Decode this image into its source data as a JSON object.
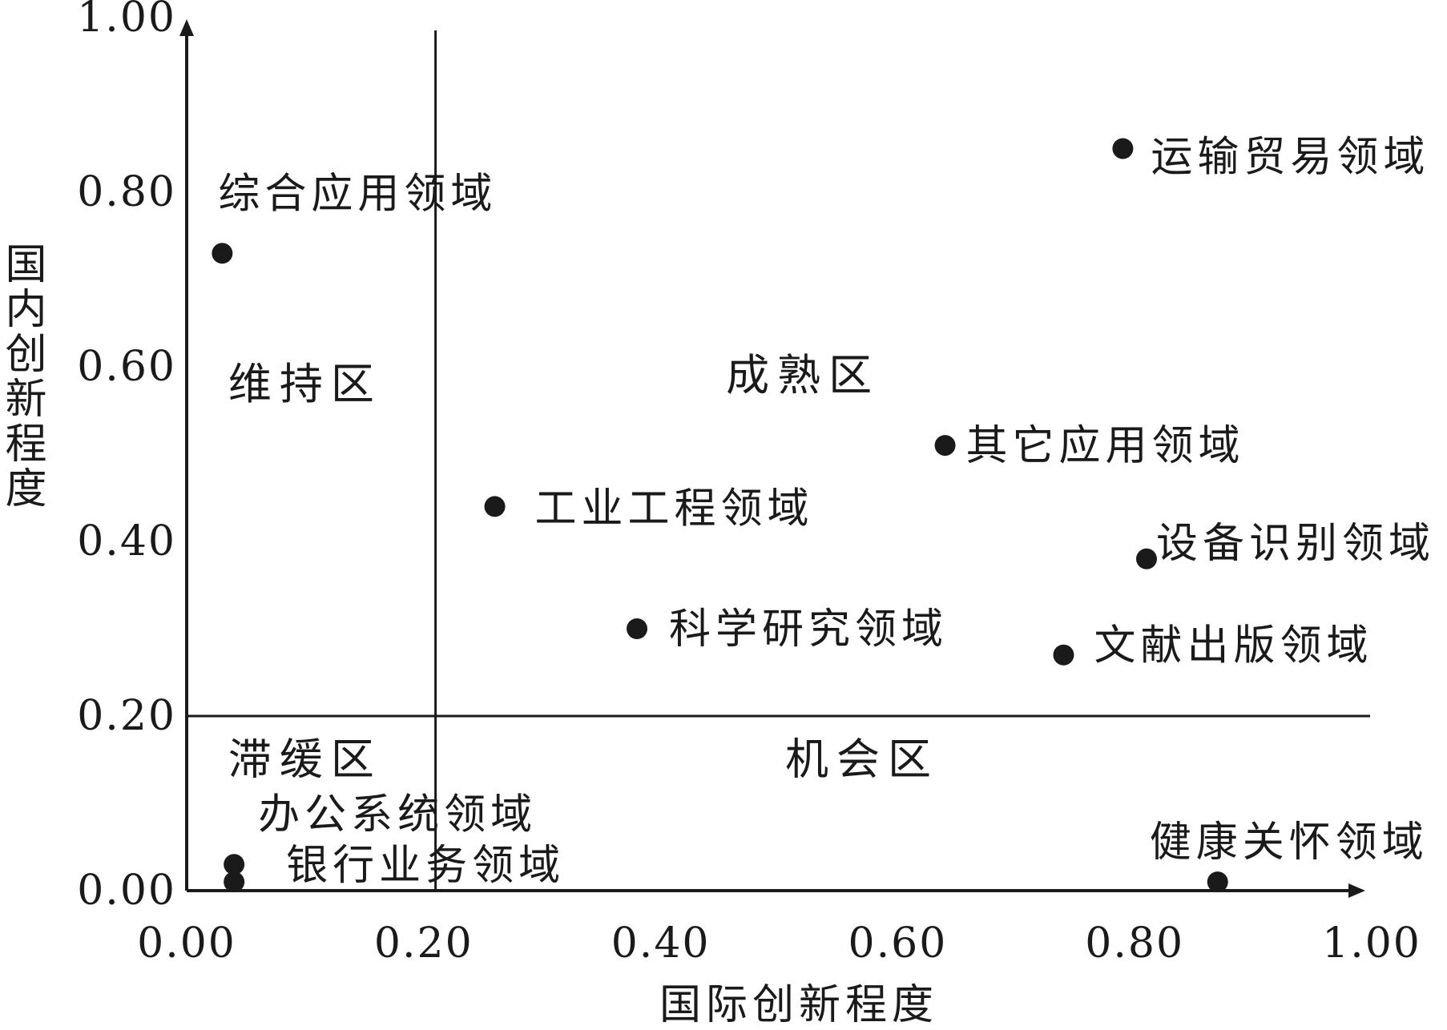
{
  "chart_data": {
    "type": "scatter",
    "xlabel": "国际创新程度",
    "ylabel": "国内创新程度",
    "xlim": [
      0,
      1
    ],
    "ylim": [
      0,
      1
    ],
    "xticks": [
      "0.00",
      "0.20",
      "0.40",
      "0.60",
      "0.80",
      "1.00"
    ],
    "yticks": [
      "0.00",
      "0.20",
      "0.40",
      "0.60",
      "0.80",
      "1.00"
    ],
    "grid": false,
    "divider_x": 0.21,
    "divider_y": 0.2,
    "zones": [
      {
        "label": "维持区",
        "x": 0.1,
        "y": 0.58
      },
      {
        "label": "成熟区",
        "x": 0.52,
        "y": 0.59
      },
      {
        "label": "滞缓区",
        "x": 0.1,
        "y": 0.15
      },
      {
        "label": "机会区",
        "x": 0.57,
        "y": 0.15
      }
    ],
    "points": [
      {
        "name": "运输贸易领域",
        "x": 0.79,
        "y": 0.85
      },
      {
        "name": "综合应用领域",
        "x": 0.03,
        "y": 0.73
      },
      {
        "name": "其它应用领域",
        "x": 0.64,
        "y": 0.51
      },
      {
        "name": "工业工程领域",
        "x": 0.26,
        "y": 0.44
      },
      {
        "name": "设备识别领域",
        "x": 0.81,
        "y": 0.38
      },
      {
        "name": "科学研究领域",
        "x": 0.38,
        "y": 0.3
      },
      {
        "name": "文献出版领域",
        "x": 0.74,
        "y": 0.27
      },
      {
        "name": "办公系统领域",
        "x": 0.04,
        "y": 0.03
      },
      {
        "name": "银行业务领域",
        "x": 0.04,
        "y": 0.01
      },
      {
        "name": "健康关怀领域",
        "x": 0.87,
        "y": 0.01
      }
    ]
  }
}
